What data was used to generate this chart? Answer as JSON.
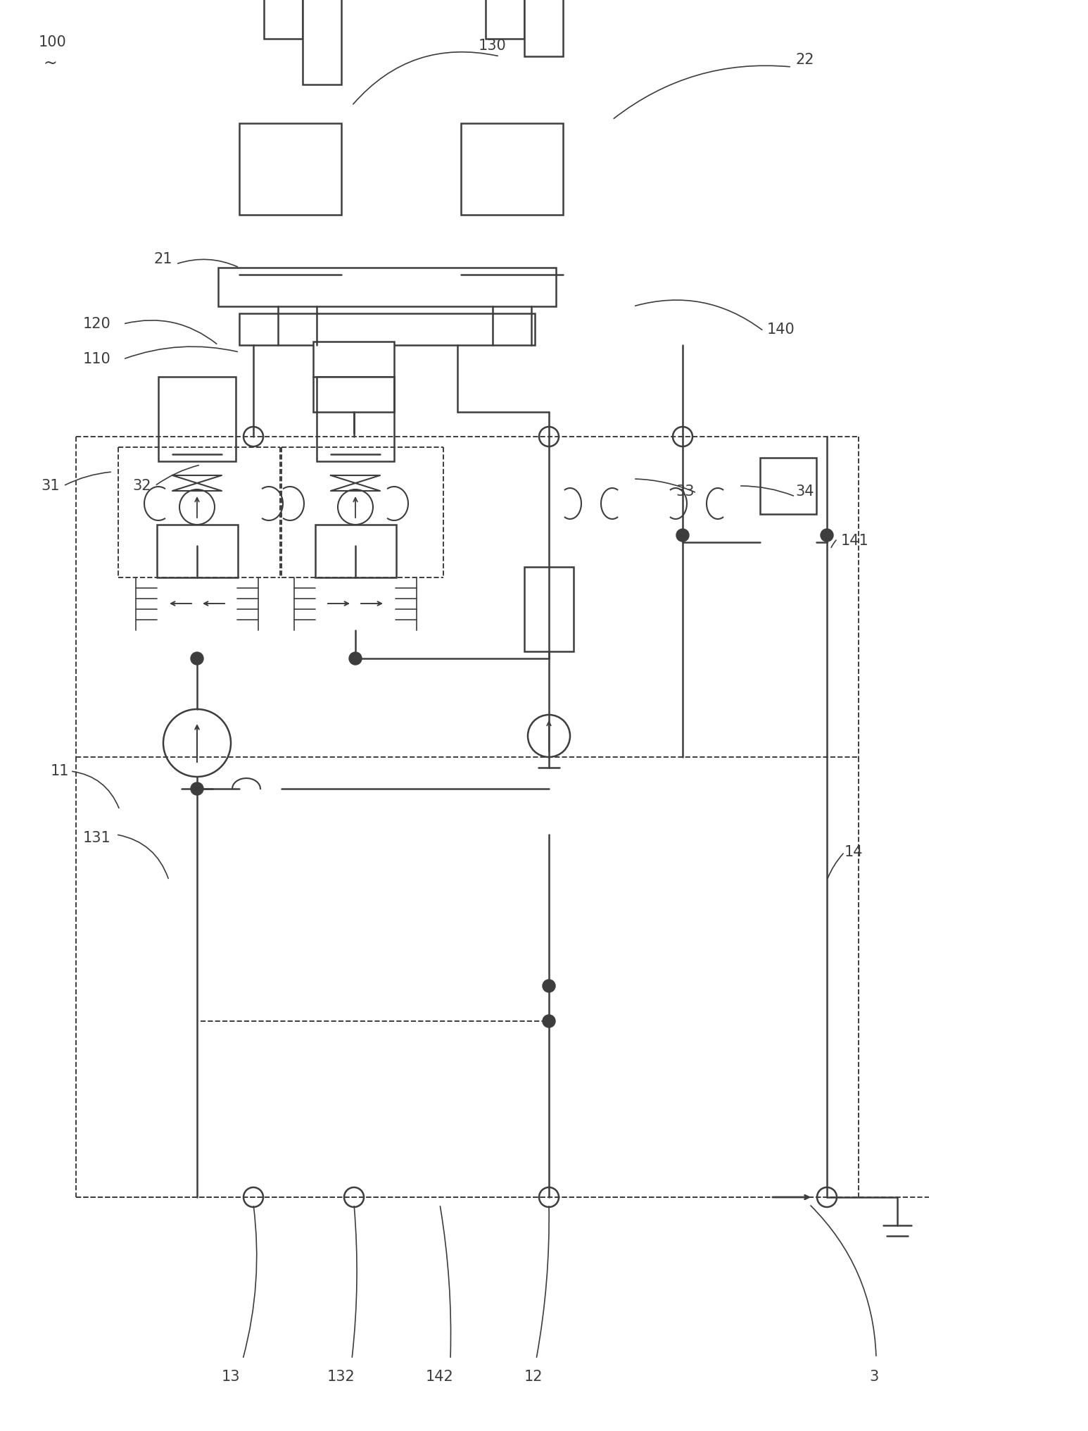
{
  "bg": "#ffffff",
  "lc": "#3d3d3d",
  "lw": 1.8,
  "dlw": 1.4,
  "fs": 14
}
